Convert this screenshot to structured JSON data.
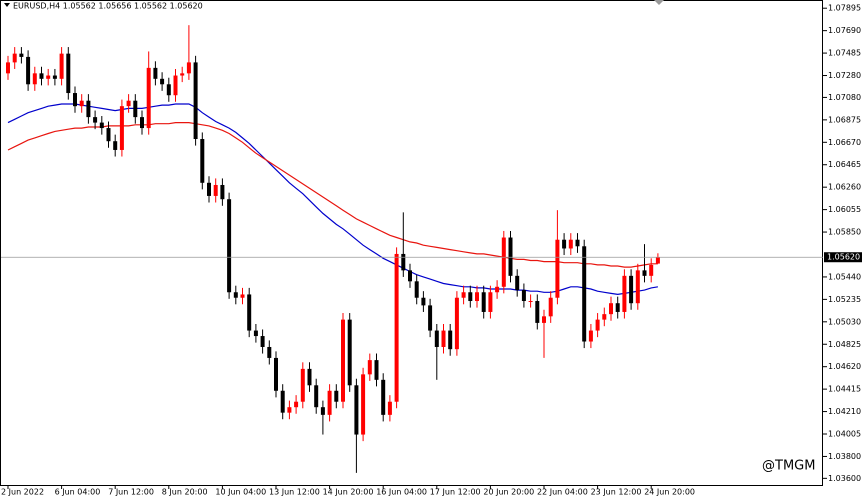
{
  "chart_data": {
    "type": "candlestick",
    "title": "EURUSD,H4  1.05562 1.05656 1.05562 1.05620",
    "watermark": "@TMGM",
    "categories": [
      "2 Jun 2022",
      null,
      null,
      null,
      null,
      null,
      null,
      null,
      "6 Jun 04:00",
      null,
      null,
      null,
      null,
      null,
      null,
      null,
      "7 Jun 12:00",
      null,
      null,
      null,
      null,
      null,
      null,
      null,
      "8 Jun 20:00",
      null,
      null,
      null,
      null,
      null,
      null,
      null,
      "10 Jun 04:00",
      null,
      null,
      null,
      null,
      null,
      null,
      null,
      "13 Jun 12:00",
      null,
      null,
      null,
      null,
      null,
      null,
      null,
      "14 Jun 20:00",
      null,
      null,
      null,
      null,
      null,
      null,
      null,
      "16 Jun 04:00",
      null,
      null,
      null,
      null,
      null,
      null,
      null,
      "17 Jun 12:00",
      null,
      null,
      null,
      null,
      null,
      null,
      null,
      "20 Jun 20:00",
      null,
      null,
      null,
      null,
      null,
      null,
      null,
      "22 Jun 04:00",
      null,
      null,
      null,
      null,
      null,
      null,
      null,
      "23 Jun 12:00",
      null,
      null,
      null,
      null,
      null,
      null,
      null,
      "24 Jun 20:00",
      null
    ],
    "open": [
      1.073,
      1.074,
      1.0748,
      1.0745,
      1.072,
      1.073,
      1.0725,
      1.0728,
      1.0725,
      1.0748,
      1.0712,
      1.07,
      1.0705,
      1.069,
      1.0685,
      1.068,
      1.0668,
      1.066,
      1.07,
      1.0705,
      1.069,
      1.068,
      1.0735,
      1.0725,
      1.072,
      1.071,
      1.0728,
      1.073,
      1.074,
      1.067,
      1.063,
      1.0618,
      1.0628,
      1.0615,
      1.053,
      1.0525,
      1.0528,
      1.0495,
      1.049,
      1.048,
      1.047,
      1.044,
      1.042,
      1.0425,
      1.043,
      1.046,
      1.0445,
      1.0425,
      1.0418,
      1.044,
      1.043,
      1.0505,
      1.0445,
      1.04,
      1.0455,
      1.0468,
      1.045,
      1.0418,
      1.043,
      1.0565,
      1.055,
      1.054,
      1.0525,
      1.0518,
      1.0495,
      1.048,
      1.0495,
      1.0478,
      1.0525,
      1.053,
      1.0522,
      1.053,
      1.0512,
      1.053,
      1.0535,
      1.058,
      1.0545,
      1.0532,
      1.0522,
      1.0522,
      1.0502,
      1.0508,
      1.0525,
      1.0578,
      1.057,
      1.0578,
      1.0572,
      1.0485,
      1.0495,
      1.0505,
      1.051,
      1.052,
      1.0512,
      1.0545,
      1.052,
      1.055,
      1.0545,
      1.05562
    ],
    "high": [
      1.0746,
      1.0754,
      1.0754,
      1.0751,
      1.0736,
      1.0736,
      1.0734,
      1.0734,
      1.0754,
      1.0754,
      1.0718,
      1.0711,
      1.0711,
      1.0696,
      1.0691,
      1.0686,
      1.0674,
      1.0706,
      1.0711,
      1.0711,
      1.0696,
      1.075,
      1.0741,
      1.0731,
      1.0726,
      1.0734,
      1.0736,
      1.0774,
      1.0746,
      1.0676,
      1.0636,
      1.0634,
      1.0634,
      1.0621,
      1.0536,
      1.0534,
      1.0534,
      1.0501,
      1.0496,
      1.0486,
      1.0476,
      1.0446,
      1.0431,
      1.0436,
      1.0466,
      1.0466,
      1.0451,
      1.0431,
      1.0446,
      1.0446,
      1.0511,
      1.0511,
      1.0451,
      1.0461,
      1.0474,
      1.0474,
      1.0456,
      1.0436,
      1.0571,
      1.0603,
      1.0556,
      1.0546,
      1.0531,
      1.0524,
      1.0501,
      1.0501,
      1.0501,
      1.0531,
      1.0536,
      1.0536,
      1.0536,
      1.0536,
      1.0536,
      1.0541,
      1.0586,
      1.0586,
      1.0551,
      1.0538,
      1.0528,
      1.0528,
      1.0514,
      1.0531,
      1.0605,
      1.0584,
      1.0584,
      1.0584,
      1.0578,
      1.0501,
      1.0511,
      1.0516,
      1.0526,
      1.0526,
      1.0551,
      1.0551,
      1.0556,
      1.0574,
      1.0561,
      1.05656
    ],
    "low": [
      1.0724,
      1.0734,
      1.0739,
      1.0714,
      1.0714,
      1.0719,
      1.0719,
      1.0719,
      1.0719,
      1.0706,
      1.0694,
      1.0694,
      1.0684,
      1.0679,
      1.0674,
      1.0662,
      1.0654,
      1.0654,
      1.0694,
      1.0684,
      1.0674,
      1.0674,
      1.0719,
      1.0714,
      1.0704,
      1.0704,
      1.0722,
      1.0724,
      1.0664,
      1.0624,
      1.0612,
      1.0612,
      1.0609,
      1.0524,
      1.0519,
      1.0519,
      1.0489,
      1.0484,
      1.0474,
      1.0464,
      1.0434,
      1.0414,
      1.0414,
      1.0419,
      1.0424,
      1.0439,
      1.0419,
      1.04,
      1.0412,
      1.0424,
      1.0424,
      1.0439,
      1.0365,
      1.0394,
      1.0449,
      1.0444,
      1.0412,
      1.0412,
      1.0424,
      1.0544,
      1.0534,
      1.0519,
      1.0512,
      1.0489,
      1.045,
      1.0474,
      1.0472,
      1.0472,
      1.0519,
      1.0516,
      1.0516,
      1.0506,
      1.0506,
      1.0524,
      1.0529,
      1.0539,
      1.0526,
      1.0516,
      1.0516,
      1.0496,
      1.047,
      1.0502,
      1.0519,
      1.0564,
      1.0564,
      1.0566,
      1.0479,
      1.0479,
      1.0489,
      1.0499,
      1.0504,
      1.0506,
      1.0506,
      1.0514,
      1.0514,
      1.0539,
      1.0539,
      1.05562
    ],
    "close": [
      1.074,
      1.0748,
      1.0745,
      1.072,
      1.073,
      1.0725,
      1.0728,
      1.0725,
      1.0748,
      1.0712,
      1.07,
      1.0705,
      1.069,
      1.0685,
      1.068,
      1.0668,
      1.066,
      1.07,
      1.0705,
      1.069,
      1.068,
      1.0735,
      1.0725,
      1.072,
      1.071,
      1.0728,
      1.073,
      1.074,
      1.067,
      1.063,
      1.0618,
      1.0628,
      1.0615,
      1.053,
      1.0525,
      1.0528,
      1.0495,
      1.049,
      1.048,
      1.047,
      1.044,
      1.042,
      1.0425,
      1.043,
      1.046,
      1.0445,
      1.0425,
      1.0418,
      1.044,
      1.043,
      1.0505,
      1.0445,
      1.04,
      1.0455,
      1.0468,
      1.045,
      1.0418,
      1.043,
      1.0565,
      1.055,
      1.054,
      1.0525,
      1.0518,
      1.0495,
      1.048,
      1.0495,
      1.0478,
      1.0525,
      1.053,
      1.0522,
      1.053,
      1.0512,
      1.053,
      1.0535,
      1.058,
      1.0545,
      1.0532,
      1.0522,
      1.0522,
      1.0502,
      1.0508,
      1.0525,
      1.0578,
      1.057,
      1.0578,
      1.0572,
      1.0485,
      1.0495,
      1.0505,
      1.051,
      1.052,
      1.0512,
      1.0545,
      1.052,
      1.055,
      1.0545,
      1.0555,
      1.0562
    ],
    "up_color": "#ff0000",
    "down_color": "#000000",
    "overlays": [
      {
        "color": "#0000cc",
        "values": [
          1.0685,
          1.0688,
          1.0691,
          1.0694,
          1.0696,
          1.0698,
          1.07,
          1.0701,
          1.0702,
          1.0702,
          1.0702,
          1.0701,
          1.07,
          1.0699,
          1.0698,
          1.0697,
          1.0696,
          1.0697,
          1.0698,
          1.0698,
          1.0698,
          1.0699,
          1.07,
          1.0701,
          1.0701,
          1.0702,
          1.0702,
          1.0702,
          1.0699,
          1.0694,
          1.069,
          1.0686,
          1.0683,
          1.068,
          1.0676,
          1.0671,
          1.0666,
          1.066,
          1.0654,
          1.0648,
          1.0642,
          1.0636,
          1.063,
          1.0625,
          1.062,
          1.0614,
          1.0608,
          1.0602,
          1.0597,
          1.0592,
          1.0588,
          1.0583,
          1.0578,
          1.0573,
          1.0569,
          1.0565,
          1.0561,
          1.0558,
          1.0555,
          1.0552,
          1.0549,
          1.0546,
          1.0544,
          1.0542,
          1.054,
          1.0538,
          1.0537,
          1.0536,
          1.0535,
          1.0535,
          1.0534,
          1.0534,
          1.0533,
          1.0533,
          1.0533,
          1.0533,
          1.0532,
          1.0532,
          1.0531,
          1.0531,
          1.053,
          1.053,
          1.0531,
          1.0533,
          1.0535,
          1.0535,
          1.0534,
          1.0533,
          1.0531,
          1.053,
          1.0529,
          1.0528,
          1.0529,
          1.053,
          1.0531,
          1.0532,
          1.0534,
          1.0535
        ]
      },
      {
        "color": "#e8150f",
        "values": [
          1.066,
          1.0663,
          1.0666,
          1.0669,
          1.0671,
          1.0673,
          1.0675,
          1.0677,
          1.0678,
          1.0679,
          1.068,
          1.068,
          1.0681,
          1.0681,
          1.0681,
          1.0682,
          1.0682,
          1.0682,
          1.0682,
          1.0683,
          1.0683,
          1.0683,
          1.0684,
          1.0684,
          1.0684,
          1.0685,
          1.0685,
          1.0685,
          1.0684,
          1.0683,
          1.0682,
          1.068,
          1.0678,
          1.0675,
          1.0671,
          1.0667,
          1.0662,
          1.0657,
          1.0653,
          1.0649,
          1.0645,
          1.0641,
          1.0637,
          1.0633,
          1.0629,
          1.0625,
          1.0621,
          1.0617,
          1.0613,
          1.0609,
          1.0605,
          1.0601,
          1.0597,
          1.0594,
          1.0591,
          1.0588,
          1.0585,
          1.0582,
          1.058,
          1.0578,
          1.0576,
          1.0575,
          1.0573,
          1.0572,
          1.0571,
          1.057,
          1.0569,
          1.0568,
          1.0567,
          1.0566,
          1.0565,
          1.0565,
          1.0564,
          1.0563,
          1.0562,
          1.0561,
          1.056,
          1.056,
          1.0559,
          1.0559,
          1.0558,
          1.0558,
          1.0558,
          1.0557,
          1.0557,
          1.0557,
          1.0556,
          1.0556,
          1.0555,
          1.0555,
          1.0554,
          1.0554,
          1.0553,
          1.0553,
          1.0554,
          1.0555,
          1.0556,
          1.0556
        ]
      }
    ],
    "current_price": {
      "value": 1.0562,
      "label": "1.05620"
    },
    "ylim": [
      1.0353,
      1.0797
    ],
    "yticks": [
      1.07895,
      {
        "value": 1.0769,
        "label": "1.07690"
      },
      1.07485,
      {
        "value": 1.0728,
        "label": "1.07280"
      },
      {
        "value": 1.0708,
        "label": "1.07080"
      },
      1.06875,
      {
        "value": 1.0667,
        "label": "1.06670"
      },
      1.06465,
      {
        "value": 1.0626,
        "label": "1.06260"
      },
      1.06055,
      {
        "value": 1.0585,
        "label": "1.05850"
      },
      {
        "value": 1.0544,
        "label": "1.05440"
      },
      1.05235,
      {
        "value": 1.0503,
        "label": "1.05030"
      },
      1.04825,
      {
        "value": 1.0462,
        "label": "1.04620"
      },
      1.04415,
      {
        "value": 1.0421,
        "label": "1.04210"
      },
      1.04005,
      {
        "value": 1.038,
        "label": "1.03800"
      },
      {
        "value": 1.036,
        "label": "1.03600"
      }
    ]
  }
}
